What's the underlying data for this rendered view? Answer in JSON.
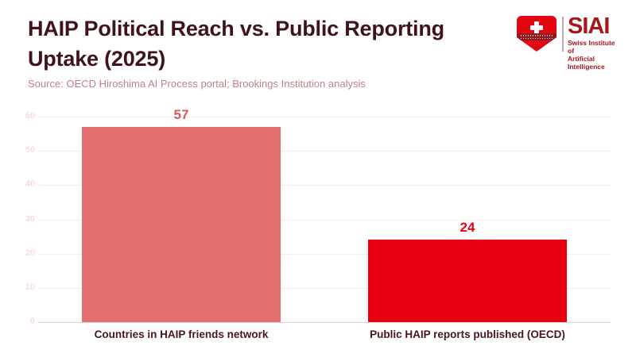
{
  "header": {
    "title_line1": "HAIP Political Reach vs. Public Reporting",
    "title_line2": "Uptake (2025)",
    "source": "Source: OECD Hiroshima AI Process portal; Brookings Institution analysis"
  },
  "logo": {
    "acronym": "SIAI",
    "name_line1": "Swiss Institute of",
    "name_line2": "Artificial Intelligence",
    "shield_icon": "swiss-shield-with-cross",
    "accent_color": "#a6171c",
    "shield_color": "#e30613",
    "banner_color": "#8e1b1f"
  },
  "chart_data": {
    "type": "bar",
    "title": "HAIP Political Reach vs. Public Reporting Uptake (2025)",
    "categories": [
      "Countries in HAIP friends network",
      "Public HAIP reports published (OECD)"
    ],
    "values": [
      57,
      24
    ],
    "data_labels": [
      "57",
      "24"
    ],
    "bar_colors": [
      "#e26e70",
      "#e60012"
    ],
    "label_colors": [
      "#d45a5d",
      "#e60012"
    ],
    "xlabel": "",
    "ylabel": "",
    "ylim": [
      0,
      60
    ],
    "ytick_interval": 10,
    "ytick_labels": [
      "0",
      "10",
      "20",
      "30",
      "40",
      "50",
      "60"
    ],
    "grid": true,
    "legend": "none",
    "gridline_color": "#fbe7e7",
    "baseline_color": "#d4d4d4",
    "tick_label_color": "#fadbdb",
    "category_label_color": "#4a151b",
    "title_color": "#3f1318",
    "source_color": "#bf8088"
  }
}
